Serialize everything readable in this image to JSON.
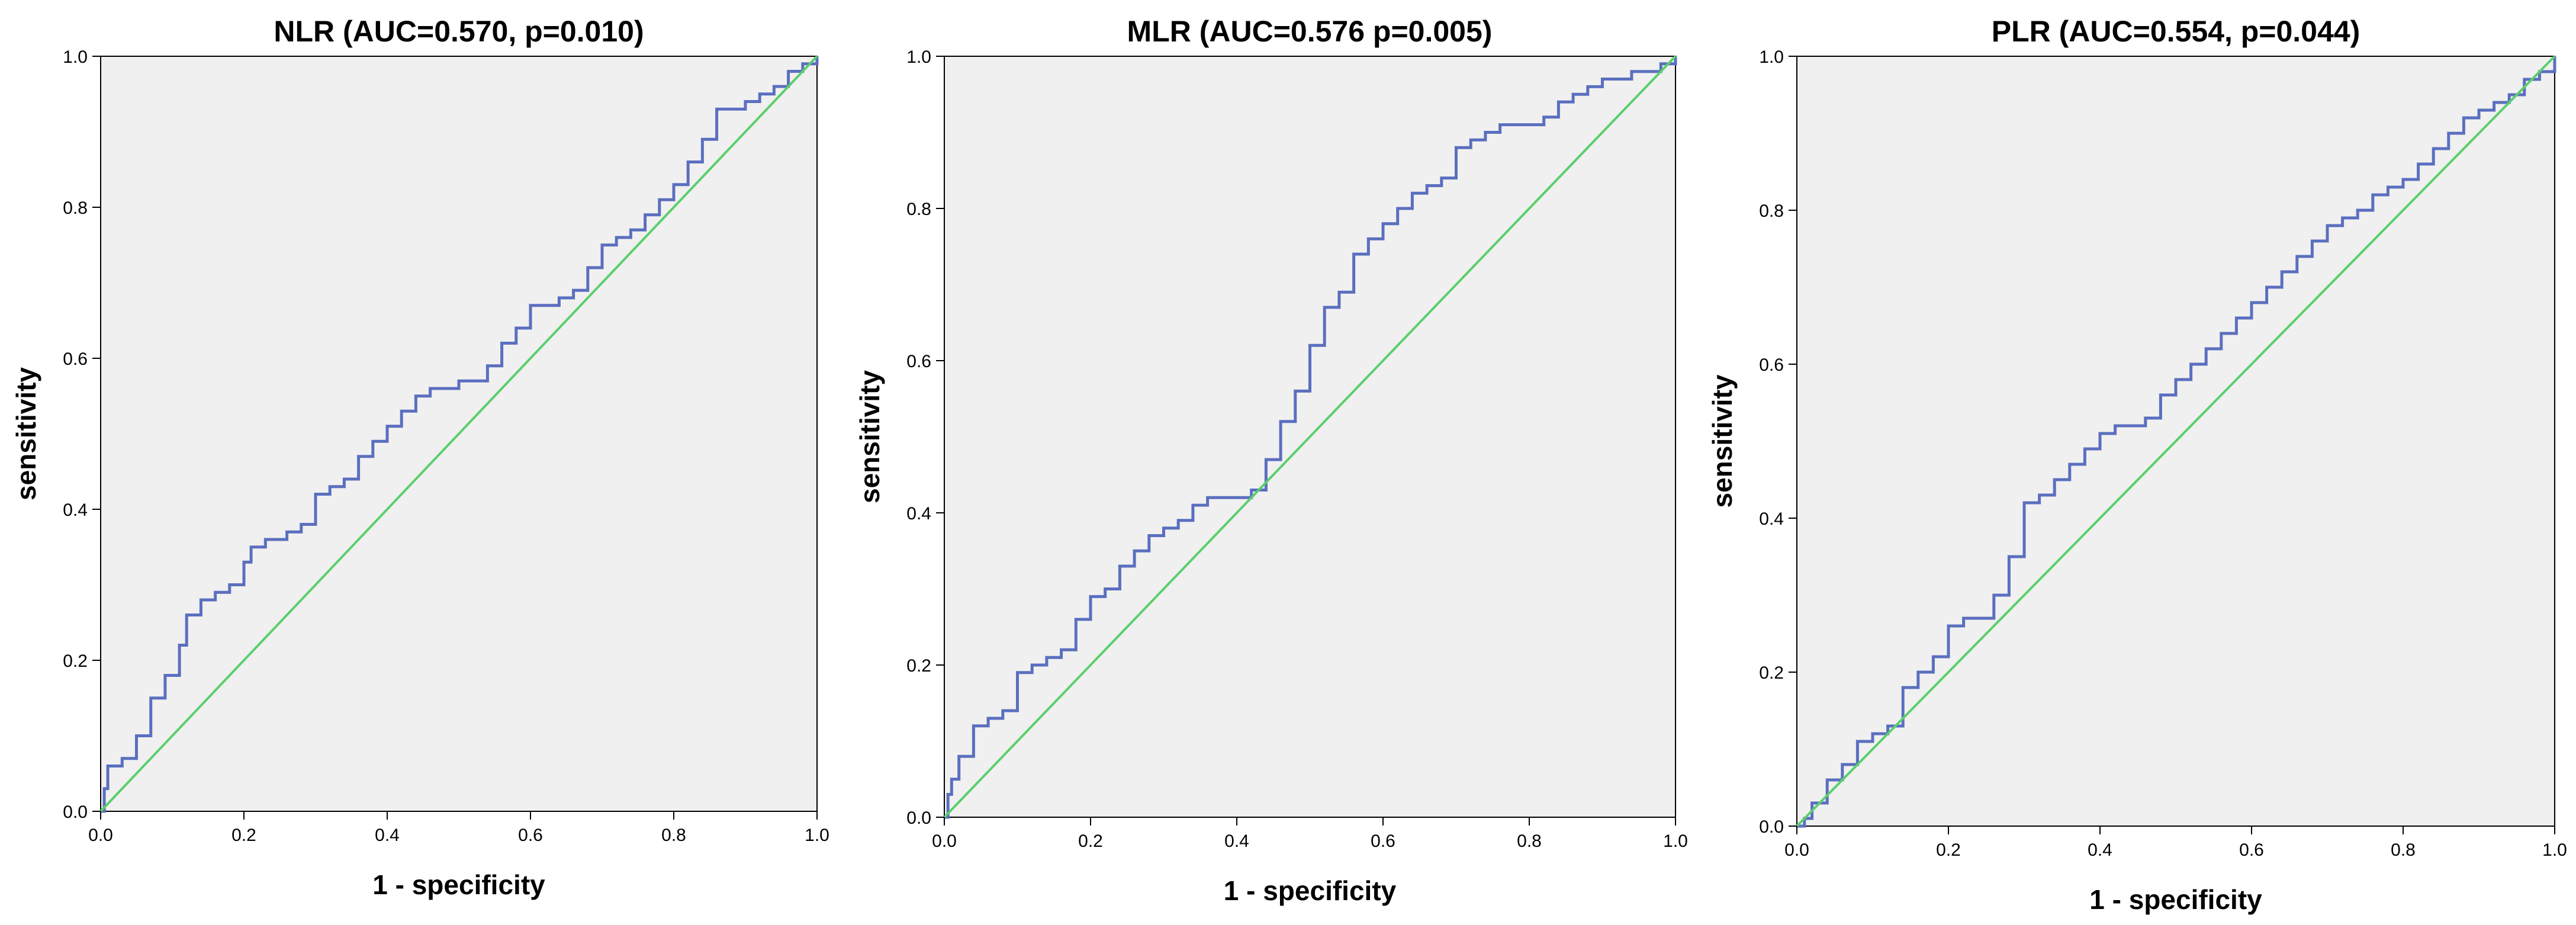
{
  "chart_data": [
    {
      "type": "line",
      "title": "NLR (AUC=0.570, p=0.010)",
      "xlabel": "1 - specificity",
      "ylabel": "sensitivity",
      "xlim": [
        0,
        1
      ],
      "ylim": [
        0,
        1
      ],
      "x_ticks": [
        "0.0",
        "0.2",
        "0.4",
        "0.6",
        "0.8",
        "1.0"
      ],
      "y_ticks": [
        "0.0",
        "0.2",
        "0.4",
        "0.6",
        "0.8",
        "1.0"
      ],
      "grid": false,
      "series": [
        {
          "color": "#5b6fbf",
          "x": [
            0,
            0.005,
            0.01,
            0.03,
            0.05,
            0.07,
            0.09,
            0.11,
            0.12,
            0.14,
            0.16,
            0.18,
            0.2,
            0.21,
            0.23,
            0.26,
            0.28,
            0.3,
            0.32,
            0.34,
            0.36,
            0.38,
            0.4,
            0.42,
            0.44,
            0.46,
            0.5,
            0.54,
            0.56,
            0.58,
            0.6,
            0.62,
            0.64,
            0.66,
            0.68,
            0.7,
            0.72,
            0.74,
            0.76,
            0.78,
            0.8,
            0.82,
            0.84,
            0.86,
            0.88,
            0.9,
            0.92,
            0.94,
            0.96,
            0.98,
            1.0
          ],
          "y": [
            0,
            0.03,
            0.06,
            0.07,
            0.1,
            0.15,
            0.18,
            0.22,
            0.26,
            0.28,
            0.29,
            0.3,
            0.33,
            0.35,
            0.36,
            0.37,
            0.38,
            0.42,
            0.43,
            0.44,
            0.47,
            0.49,
            0.51,
            0.53,
            0.55,
            0.56,
            0.57,
            0.59,
            0.62,
            0.64,
            0.67,
            0.67,
            0.68,
            0.69,
            0.72,
            0.75,
            0.76,
            0.77,
            0.79,
            0.81,
            0.83,
            0.86,
            0.89,
            0.93,
            0.93,
            0.94,
            0.95,
            0.96,
            0.98,
            0.99,
            1.0
          ]
        },
        {
          "color": "#5bcf6c",
          "x": [
            0,
            1
          ],
          "y": [
            0,
            1
          ]
        }
      ]
    },
    {
      "type": "line",
      "title": "MLR (AUC=0.576 p=0.005)",
      "xlabel": "1 - specificity",
      "ylabel": "sensitivity",
      "xlim": [
        0,
        1
      ],
      "ylim": [
        0,
        1
      ],
      "x_ticks": [
        "0.0",
        "0.2",
        "0.4",
        "0.6",
        "0.8",
        "1.0"
      ],
      "y_ticks": [
        "0.0",
        "0.2",
        "0.4",
        "0.6",
        "0.8",
        "1.0"
      ],
      "grid": false,
      "series": [
        {
          "color": "#5b6fbf",
          "x": [
            0,
            0.005,
            0.01,
            0.02,
            0.04,
            0.06,
            0.08,
            0.1,
            0.12,
            0.14,
            0.16,
            0.18,
            0.2,
            0.22,
            0.24,
            0.26,
            0.28,
            0.3,
            0.32,
            0.34,
            0.36,
            0.38,
            0.4,
            0.42,
            0.44,
            0.46,
            0.48,
            0.5,
            0.52,
            0.54,
            0.56,
            0.58,
            0.6,
            0.62,
            0.64,
            0.66,
            0.68,
            0.7,
            0.72,
            0.74,
            0.76,
            0.78,
            0.8,
            0.82,
            0.84,
            0.86,
            0.88,
            0.9,
            0.92,
            0.94,
            0.96,
            0.98,
            1.0
          ],
          "y": [
            0,
            0.03,
            0.05,
            0.08,
            0.12,
            0.13,
            0.14,
            0.19,
            0.2,
            0.21,
            0.22,
            0.26,
            0.29,
            0.3,
            0.33,
            0.35,
            0.37,
            0.38,
            0.39,
            0.41,
            0.42,
            0.42,
            0.42,
            0.43,
            0.47,
            0.52,
            0.56,
            0.62,
            0.67,
            0.69,
            0.74,
            0.76,
            0.78,
            0.8,
            0.82,
            0.83,
            0.84,
            0.88,
            0.89,
            0.9,
            0.91,
            0.91,
            0.91,
            0.92,
            0.94,
            0.95,
            0.96,
            0.97,
            0.97,
            0.98,
            0.98,
            0.99,
            1.0
          ]
        },
        {
          "color": "#5bcf6c",
          "x": [
            0,
            1
          ],
          "y": [
            0,
            1
          ]
        }
      ]
    },
    {
      "type": "line",
      "title": "PLR (AUC=0.554, p=0.044)",
      "xlabel": "1 - specificity",
      "ylabel": "sensitivity",
      "xlim": [
        0,
        1
      ],
      "ylim": [
        0,
        1
      ],
      "x_ticks": [
        "0.0",
        "0.2",
        "0.4",
        "0.6",
        "0.8",
        "1.0"
      ],
      "y_ticks": [
        "0.0",
        "0.2",
        "0.4",
        "0.6",
        "0.8",
        "1.0"
      ],
      "grid": false,
      "series": [
        {
          "color": "#5b6fbf",
          "x": [
            0,
            0.01,
            0.02,
            0.04,
            0.06,
            0.08,
            0.1,
            0.12,
            0.14,
            0.16,
            0.18,
            0.2,
            0.22,
            0.24,
            0.26,
            0.28,
            0.3,
            0.32,
            0.34,
            0.36,
            0.38,
            0.4,
            0.42,
            0.44,
            0.46,
            0.48,
            0.5,
            0.52,
            0.54,
            0.56,
            0.58,
            0.6,
            0.62,
            0.64,
            0.66,
            0.68,
            0.7,
            0.72,
            0.74,
            0.76,
            0.78,
            0.8,
            0.82,
            0.84,
            0.86,
            0.88,
            0.9,
            0.92,
            0.94,
            0.96,
            0.98,
            1.0
          ],
          "y": [
            0,
            0.01,
            0.03,
            0.06,
            0.08,
            0.11,
            0.12,
            0.13,
            0.18,
            0.2,
            0.22,
            0.26,
            0.27,
            0.27,
            0.3,
            0.35,
            0.42,
            0.43,
            0.45,
            0.47,
            0.49,
            0.51,
            0.52,
            0.52,
            0.53,
            0.56,
            0.58,
            0.6,
            0.62,
            0.64,
            0.66,
            0.68,
            0.7,
            0.72,
            0.74,
            0.76,
            0.78,
            0.79,
            0.8,
            0.82,
            0.83,
            0.84,
            0.86,
            0.88,
            0.9,
            0.92,
            0.93,
            0.94,
            0.95,
            0.97,
            0.98,
            1.0
          ]
        },
        {
          "color": "#5bcf6c",
          "x": [
            0,
            1
          ],
          "y": [
            0,
            1
          ]
        }
      ]
    }
  ]
}
